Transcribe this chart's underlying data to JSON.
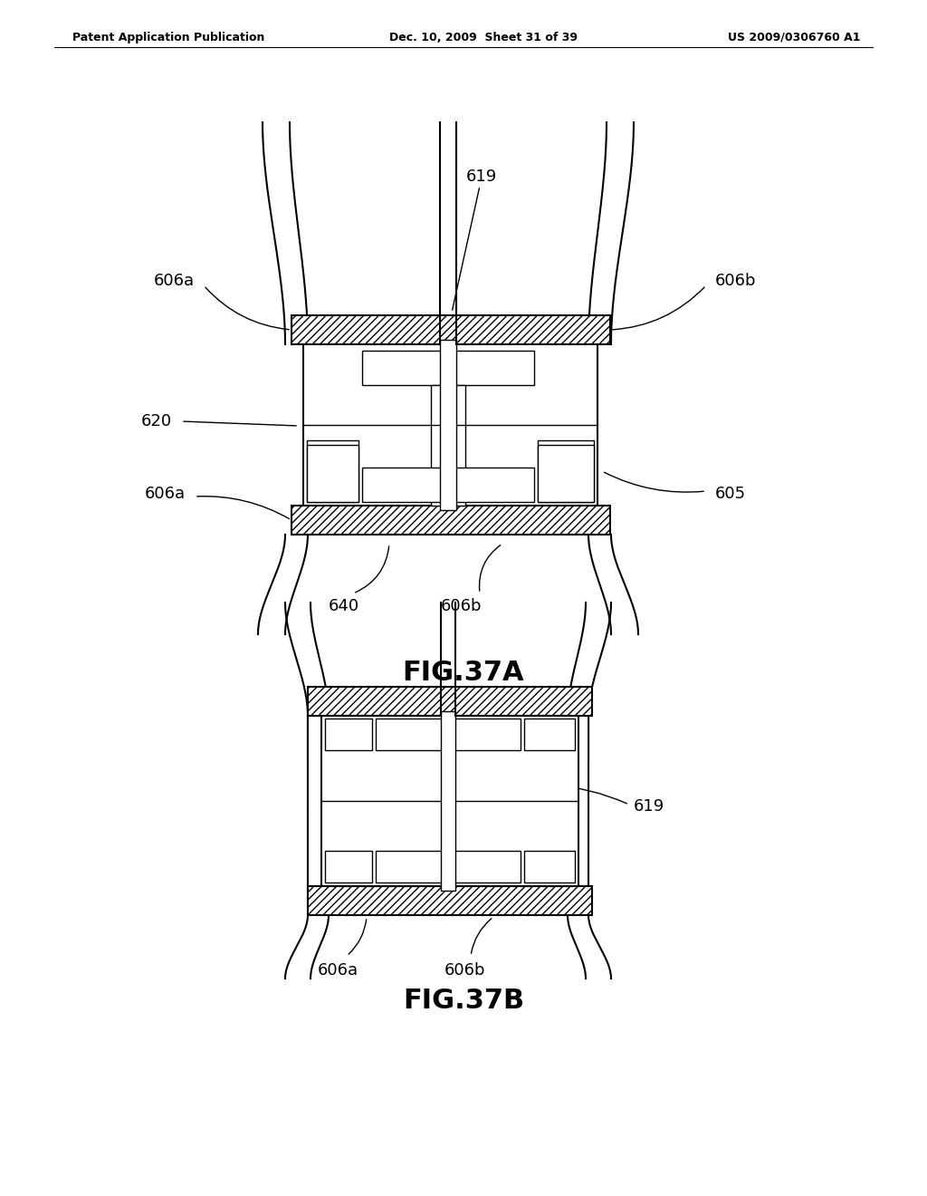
{
  "bg_color": "#ffffff",
  "line_color": "#000000",
  "header_left": "Patent Application Publication",
  "header_mid": "Dec. 10, 2009  Sheet 31 of 39",
  "header_right": "US 2009/0306760 A1",
  "fig37a_label": "FIG.37A",
  "fig37b_label": "FIG.37B"
}
